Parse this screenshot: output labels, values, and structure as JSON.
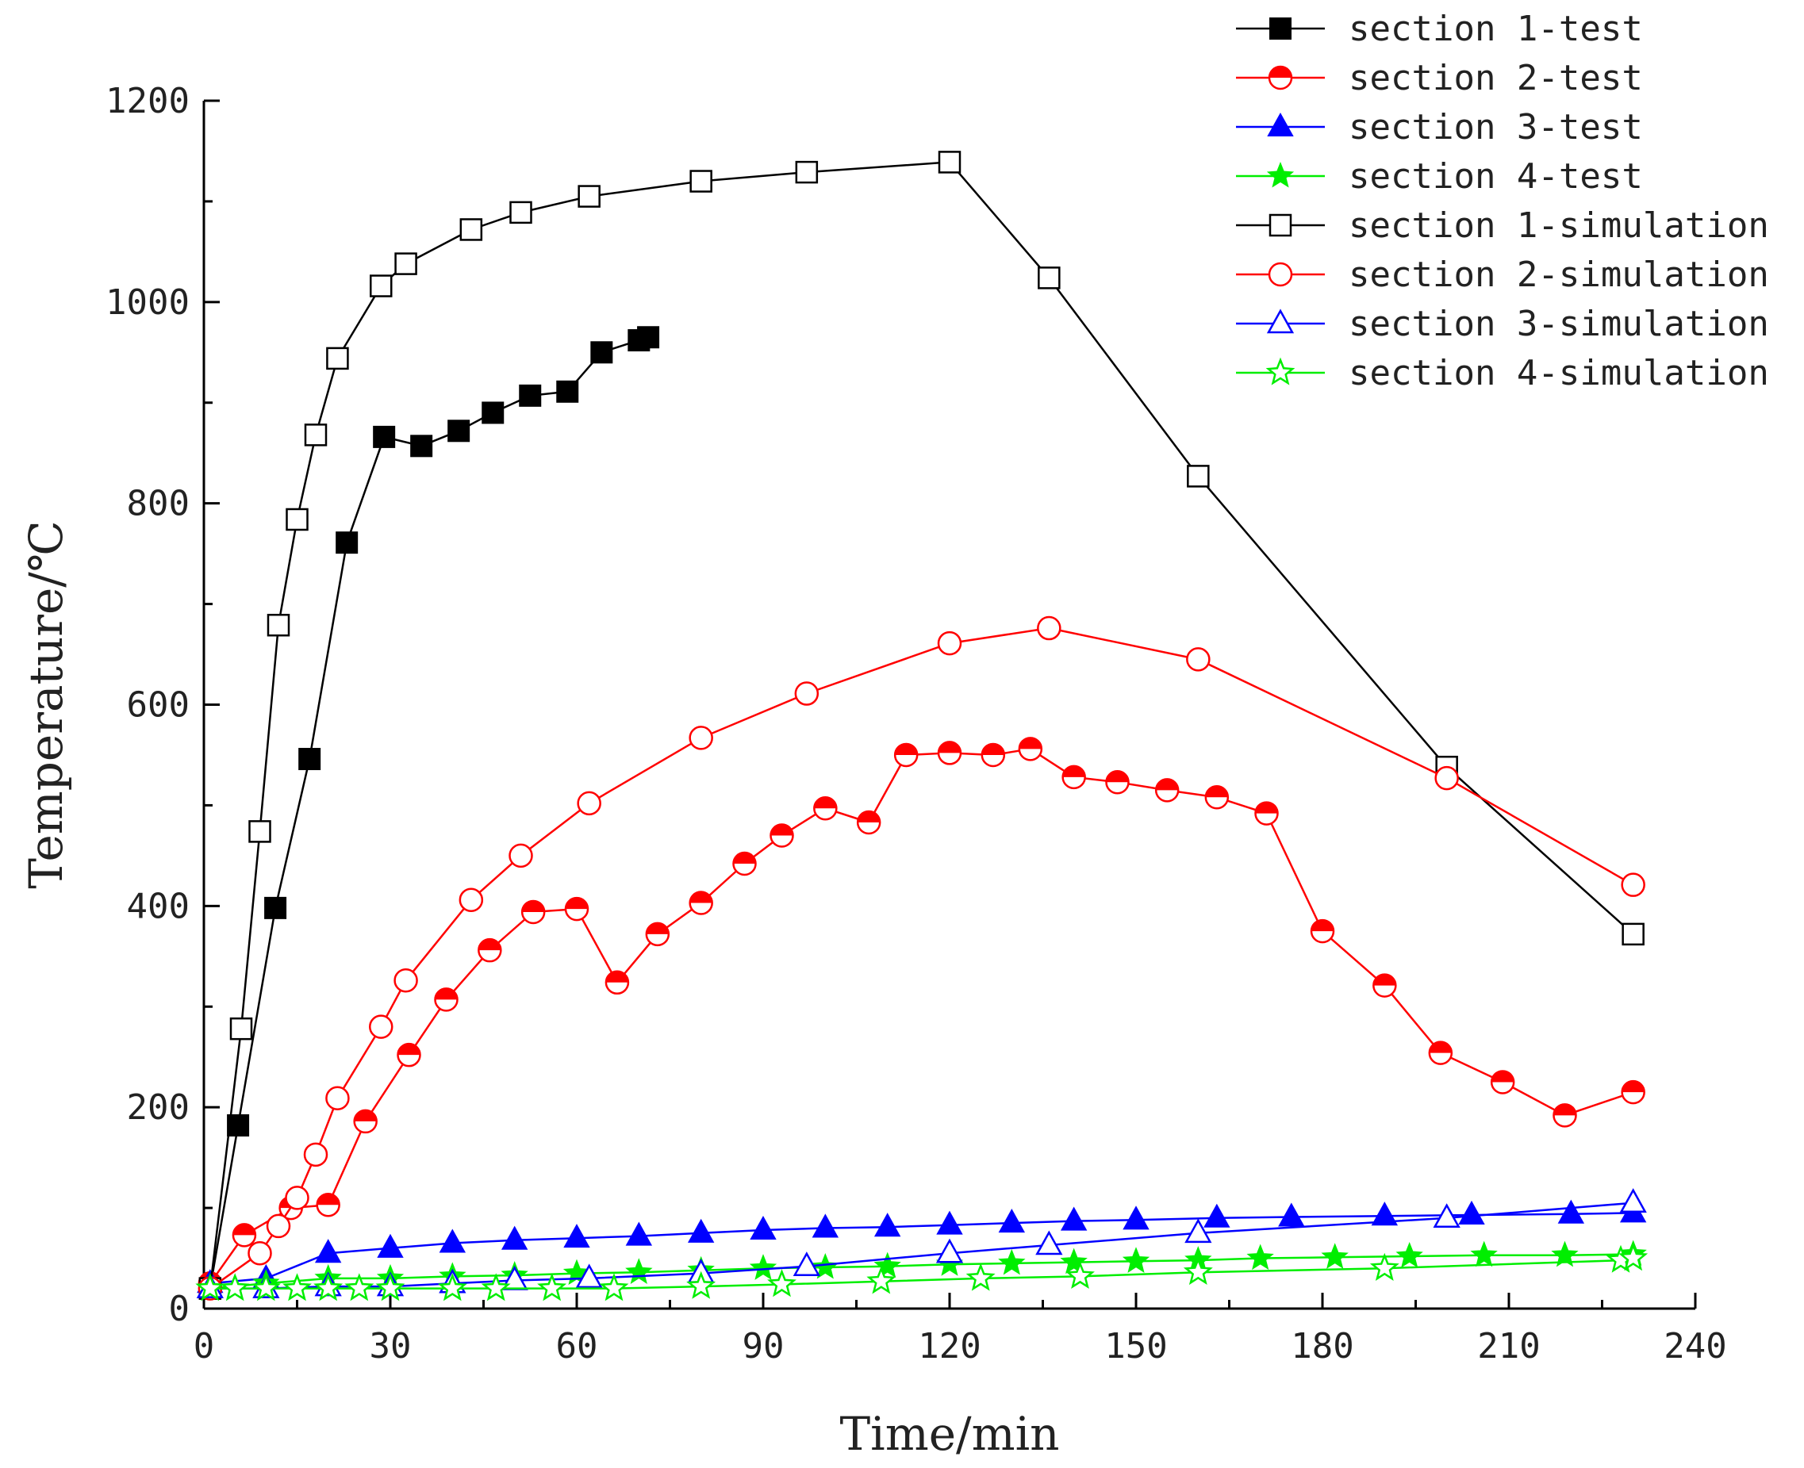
{
  "chart_data": {
    "type": "line",
    "title": "",
    "xlabel": "Time/min",
    "ylabel": "Temperature/℃",
    "xlim": [
      0,
      240
    ],
    "ylim": [
      0,
      1200
    ],
    "xticks": [
      0,
      30,
      60,
      90,
      120,
      150,
      180,
      210,
      240
    ],
    "yticks": [
      0,
      200,
      400,
      600,
      800,
      1000,
      1200
    ],
    "xtick_labels": [
      "0",
      "30",
      "60",
      "90",
      "120",
      "150",
      "180",
      "210",
      "240"
    ],
    "ytick_labels": [
      "0",
      "200",
      "400",
      "600",
      "800",
      "1000",
      "1200"
    ],
    "grid": false,
    "legend_position": "top-right",
    "series": [
      {
        "name": "section 1-test",
        "color": "#000000",
        "marker": "square-filled",
        "x": [
          1,
          5.5,
          11.5,
          17,
          23,
          29,
          35,
          41,
          46.5,
          52.5,
          58.5,
          64,
          70,
          71.5
        ],
        "y": [
          20,
          182,
          398,
          546,
          761,
          866,
          857,
          872,
          890,
          907,
          911,
          950,
          962,
          965
        ]
      },
      {
        "name": "section 2-test",
        "color": "#ff0000",
        "marker": "circle-half",
        "x": [
          1,
          6.5,
          14,
          20,
          26,
          33,
          39,
          46,
          53,
          60,
          66.5,
          73,
          80,
          87,
          93,
          100,
          107,
          113,
          120,
          127,
          133,
          140,
          147,
          155,
          163,
          171,
          180,
          190,
          199,
          209,
          219,
          230
        ],
        "y": [
          25,
          73,
          100,
          103,
          186,
          252,
          307,
          356,
          394,
          397,
          324,
          372,
          403,
          442,
          470,
          497,
          483,
          550,
          552,
          550,
          556,
          528,
          523,
          515,
          508,
          492,
          375,
          321,
          254,
          225,
          192,
          215
        ]
      },
      {
        "name": "section 3-test",
        "color": "#0000ff",
        "marker": "triangle-filled",
        "x": [
          1,
          10,
          20,
          30,
          40,
          50,
          60,
          70,
          80,
          90,
          100,
          110,
          120,
          130,
          140,
          150,
          163,
          175,
          190,
          204,
          220,
          230
        ],
        "y": [
          25,
          30,
          55,
          60,
          65,
          68,
          70,
          72,
          75,
          78,
          80,
          81,
          83,
          85,
          87,
          88,
          90,
          91,
          92,
          93,
          94,
          95
        ]
      },
      {
        "name": "section 4-test",
        "color": "#00ee00",
        "marker": "star-filled",
        "x": [
          1,
          10,
          20,
          30,
          40,
          50,
          60,
          70,
          80,
          90,
          100,
          110,
          120,
          130,
          140,
          150,
          160,
          170,
          182,
          194,
          206,
          219,
          230
        ],
        "y": [
          20,
          25,
          30,
          30,
          32,
          33,
          35,
          36,
          38,
          40,
          41,
          42,
          44,
          45,
          46,
          47,
          48,
          50,
          51,
          52,
          53,
          53,
          54
        ]
      },
      {
        "name": "section 1-simulation",
        "color": "#000000",
        "marker": "square-open",
        "x": [
          1,
          6,
          9,
          12,
          15,
          18,
          21.5,
          28.5,
          32.5,
          43,
          51,
          62,
          80,
          97,
          120,
          136,
          160,
          200,
          230
        ],
        "y": [
          20,
          278,
          474,
          679,
          784,
          868,
          944,
          1016,
          1038,
          1072,
          1089,
          1105,
          1120,
          1129,
          1139,
          1024,
          827,
          538,
          372
        ]
      },
      {
        "name": "section 2-simulation",
        "color": "#ff0000",
        "marker": "circle-open",
        "x": [
          1,
          9,
          12,
          15,
          18,
          21.5,
          28.5,
          32.5,
          43,
          51,
          62,
          80,
          97,
          120,
          136,
          160,
          200,
          230
        ],
        "y": [
          20,
          55,
          82,
          110,
          153,
          209,
          280,
          326,
          406,
          450,
          502,
          567,
          611,
          661,
          676,
          645,
          527,
          421
        ]
      },
      {
        "name": "section 3-simulation",
        "color": "#0000ff",
        "marker": "triangle-open",
        "x": [
          1,
          10,
          20,
          30,
          40,
          50,
          62,
          80,
          97,
          120,
          136,
          160,
          200,
          230
        ],
        "y": [
          20,
          20,
          22,
          22,
          25,
          28,
          30,
          35,
          42,
          55,
          63,
          75,
          90,
          105
        ]
      },
      {
        "name": "section 4-simulation",
        "color": "#00ee00",
        "marker": "star-open",
        "x": [
          1,
          5,
          10,
          15,
          20,
          25,
          30,
          40,
          47,
          56,
          66,
          80,
          93,
          109,
          125,
          141,
          160,
          190,
          228,
          230
        ],
        "y": [
          20,
          20,
          20,
          20,
          20,
          20,
          20,
          20,
          20,
          20,
          20,
          22,
          24,
          27,
          30,
          32,
          36,
          40,
          48,
          50
        ]
      }
    ]
  }
}
